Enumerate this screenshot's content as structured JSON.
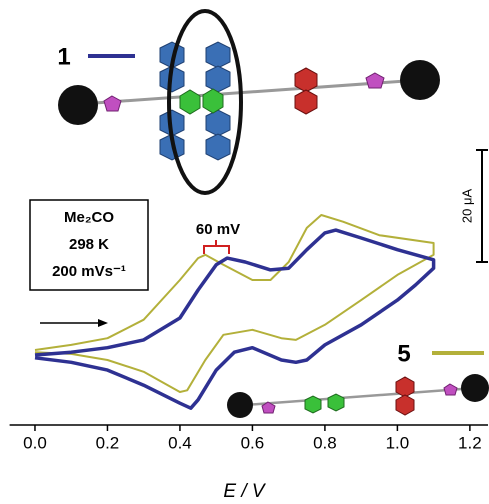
{
  "chart_data": {
    "type": "line",
    "x_label": "E / V",
    "xlim": [
      -0.07,
      1.25
    ],
    "xticks": [
      {
        "value": 0,
        "label": "0.0"
      },
      0.2,
      0.4,
      0.6,
      0.8,
      {
        "value": 1,
        "label": "1.0"
      },
      1.2
    ],
    "ylim": [
      -12.5,
      50
    ],
    "scale_bar": {
      "value": 20,
      "label": "20 μA"
    },
    "annotations": [
      "Me₂CO",
      "298 K",
      "200 mVs⁻¹",
      "60 mV"
    ],
    "series": [
      {
        "name": "1",
        "color": "#2e3192",
        "x": [
          0.0,
          0.1,
          0.2,
          0.3,
          0.4,
          0.45,
          0.5,
          0.53,
          0.58,
          0.65,
          0.7,
          0.75,
          0.8,
          0.83,
          0.9,
          1.0,
          1.1,
          1.1,
          1.05,
          1.0,
          0.9,
          0.8,
          0.75,
          0.72,
          0.68,
          0.6,
          0.55,
          0.5,
          0.45,
          0.43,
          0.4,
          0.3,
          0.2,
          0.1,
          0.0
        ],
        "values": [
          0,
          0.5,
          1.3,
          2.7,
          6.6,
          11.6,
          16.1,
          17.3,
          16.6,
          15.2,
          15.5,
          18.8,
          21.8,
          22.3,
          20.9,
          18.8,
          17.0,
          15.5,
          12.5,
          9.8,
          5.4,
          1.8,
          -0.9,
          -1.3,
          -0.9,
          1.3,
          0.5,
          -2.7,
          -8.0,
          -9.5,
          -8.6,
          -5.4,
          -2.7,
          -1.3,
          -0.5
        ]
      },
      {
        "name": "5",
        "color": "#b3b03a",
        "x": [
          0.0,
          0.1,
          0.2,
          0.3,
          0.4,
          0.45,
          0.47,
          0.52,
          0.6,
          0.65,
          0.7,
          0.75,
          0.79,
          0.85,
          0.95,
          1.1,
          1.1,
          1.0,
          0.9,
          0.8,
          0.72,
          0.68,
          0.6,
          0.52,
          0.47,
          0.42,
          0.4,
          0.3,
          0.2,
          0.1,
          0.0
        ],
        "values": [
          0.9,
          1.8,
          3.0,
          6.3,
          13.4,
          17.3,
          17.9,
          16.1,
          13.4,
          13.4,
          16.6,
          22.7,
          25.0,
          23.8,
          21.4,
          20.0,
          17.9,
          14.3,
          9.8,
          5.4,
          2.7,
          3.0,
          4.5,
          3.6,
          -0.9,
          -6.3,
          -6.6,
          -3.0,
          -0.9,
          0.2,
          0.5
        ]
      }
    ]
  }
}
